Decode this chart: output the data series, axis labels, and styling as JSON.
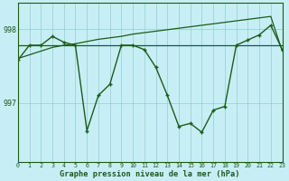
{
  "x": [
    0,
    1,
    2,
    3,
    4,
    5,
    6,
    7,
    8,
    9,
    10,
    11,
    12,
    13,
    14,
    15,
    16,
    17,
    18,
    19,
    20,
    21,
    22,
    23
  ],
  "y_main": [
    997.58,
    997.78,
    997.78,
    997.9,
    997.82,
    997.78,
    996.62,
    997.1,
    997.25,
    997.78,
    997.78,
    997.72,
    997.48,
    997.1,
    996.68,
    996.72,
    996.6,
    996.9,
    996.95,
    997.78,
    997.85,
    997.92,
    998.05,
    997.72
  ],
  "y_trend_diag": [
    997.6,
    997.65,
    997.7,
    997.75,
    997.78,
    997.8,
    997.83,
    997.86,
    997.88,
    997.9,
    997.93,
    997.95,
    997.97,
    997.99,
    998.01,
    998.03,
    998.05,
    998.07,
    998.09,
    998.11,
    998.13,
    998.15,
    998.17,
    997.7
  ],
  "y_trend_flat": [
    997.78,
    997.78,
    997.78,
    997.78,
    997.78,
    997.78,
    997.78,
    997.78,
    997.78,
    997.78,
    997.78,
    997.78,
    997.78,
    997.78,
    997.78,
    997.78,
    997.78,
    997.78,
    997.78,
    997.78,
    997.78,
    997.78,
    997.78,
    997.78
  ],
  "line_color": "#1a5c1a",
  "bg_color": "#c8eef5",
  "grid_color": "#8ecfcf",
  "xlabel": "Graphe pression niveau de la mer (hPa)",
  "ytick_labels": [
    "997",
    "998"
  ],
  "ytick_vals": [
    997.0,
    998.0
  ],
  "ylim": [
    996.2,
    998.35
  ],
  "xlim": [
    0,
    23
  ]
}
